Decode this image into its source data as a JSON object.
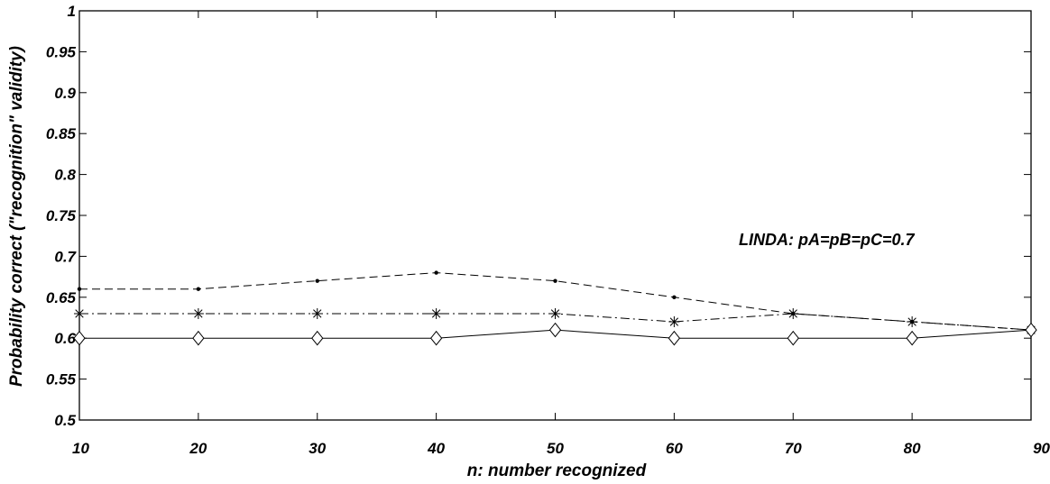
{
  "chart_data": {
    "type": "line",
    "title": "",
    "xlabel": "n: number recognized",
    "ylabel": "Probability correct (\"recognition\" validity)",
    "xlim": [
      10,
      90
    ],
    "ylim": [
      0.5,
      1
    ],
    "xticks": [
      10,
      20,
      30,
      40,
      50,
      60,
      70,
      80,
      90
    ],
    "xtick_labels": [
      "10",
      "20",
      "30",
      "40",
      "50",
      "60",
      "70",
      "80",
      "90"
    ],
    "yticks": [
      0.5,
      0.55,
      0.6,
      0.65,
      0.7,
      0.75,
      0.8,
      0.85,
      0.9,
      0.95,
      1
    ],
    "ytick_labels": [
      "0.5",
      "0.55",
      "0.6",
      "0.65",
      "0.7",
      "0.75",
      "0.8",
      "0.85",
      "0.9",
      "0.95",
      "1"
    ],
    "grid": false,
    "annotation": "LINDA: pA=pB=pC=0.7",
    "x": [
      10,
      20,
      30,
      40,
      50,
      60,
      70,
      80,
      90
    ],
    "series": [
      {
        "line_style": "dashed",
        "marker": "dot",
        "color": "#000000",
        "values": [
          0.66,
          0.66,
          0.67,
          0.68,
          0.67,
          0.65,
          0.63,
          0.62,
          0.61
        ]
      },
      {
        "line_style": "dash-dot",
        "marker": "asterisk",
        "color": "#000000",
        "values": [
          0.63,
          0.63,
          0.63,
          0.63,
          0.63,
          0.62,
          0.63,
          0.62,
          0.61
        ]
      },
      {
        "line_style": "solid",
        "marker": "diamond",
        "color": "#000000",
        "values": [
          0.6,
          0.6,
          0.6,
          0.6,
          0.61,
          0.6,
          0.6,
          0.6,
          0.61
        ]
      }
    ]
  }
}
